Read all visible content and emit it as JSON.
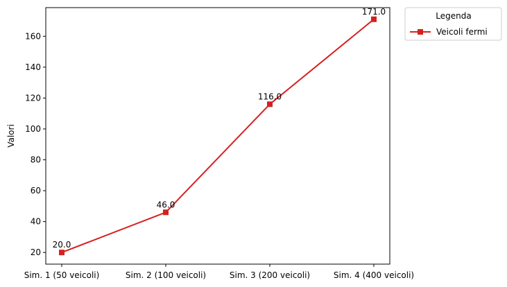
{
  "chart_data": {
    "type": "line",
    "title": "",
    "xlabel": "",
    "ylabel": "Valori",
    "categories": [
      "Sim. 1 (50 veicoli)",
      "Sim. 2 (100 veicoli)",
      "Sim. 3 (200 veicoli)",
      "Sim. 4 (400 veicoli)"
    ],
    "series": [
      {
        "name": "Veicoli fermi",
        "values": [
          20.0,
          46.0,
          116.0,
          171.0
        ],
        "color": "#d62020",
        "marker": "square"
      }
    ],
    "data_labels": [
      "20.0",
      "46.0",
      "116.0",
      "171.0"
    ],
    "ylim": [
      12.45,
      178.55
    ],
    "yticks": [
      20,
      40,
      60,
      80,
      100,
      120,
      140,
      160
    ],
    "grid": false,
    "legend": {
      "title": "Legenda",
      "placement": "outside-top-right"
    }
  }
}
